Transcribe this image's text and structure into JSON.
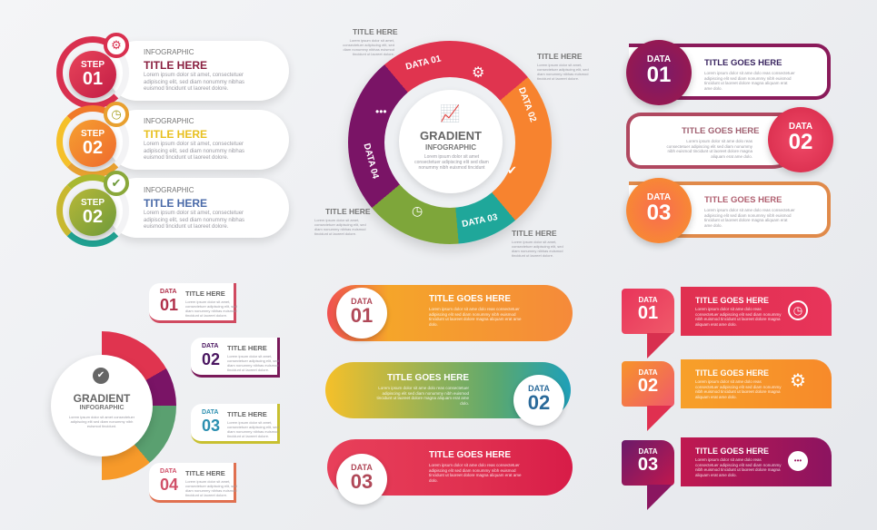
{
  "lorem_short": "Lorem ipsum dolor sit amet, consectetuer adipiscing elit, sed diam nonummy nibhas euismod tincidunt ut laoreet dolore.",
  "lorem_long": "Lorem ipsum dolor sit ame dolo reas consectetuer adipiscing elit sed diam nonummy nibh euismod tincidunt ut laoreet dolore magna aliquam erat ame dolo.",
  "steps": {
    "items": [
      {
        "kicker": "INFOGRAPHIC",
        "title": "TITLE HERE",
        "step": "STEP",
        "num": "01",
        "icon": "gear-icon",
        "color": "#d9304f"
      },
      {
        "kicker": "INFOGRAPHIC",
        "title": "TITLE HERE",
        "step": "STEP",
        "num": "02",
        "icon": "clock-icon",
        "color": "#f07a2a"
      },
      {
        "kicker": "INFOGRAPHIC",
        "title": "TITLE HERE",
        "step": "STEP",
        "num": "02",
        "icon": "lightbulb-check-icon",
        "color": "#8aa83a"
      }
    ]
  },
  "cycle": {
    "title": "GRADIENT",
    "subtitle": "INFOGRAPHIC",
    "body": "Lorem ipsum dolor sit amet consectetuer adipiscing elit sed diam nonummy nibh euismod tincidunt",
    "segments": [
      {
        "label": "DATA 01",
        "color": "#e0344f",
        "icon": "gear-icon"
      },
      {
        "label": "DATA 02",
        "color": "#f7832f",
        "icon": "lightbulb-check-icon"
      },
      {
        "label": "DATA 03",
        "color": "#1fa79a",
        "icon": "clock-icon"
      },
      {
        "label": "DATA 04",
        "color": "#7a1466",
        "icon": "chat-icon"
      }
    ],
    "callouts": [
      "TITLE HERE",
      "TITLE HERE",
      "TITLE HERE",
      "TITLE HERE"
    ]
  },
  "badges": {
    "items": [
      {
        "data": "DATA",
        "num": "01",
        "title": "TITLE GOES HERE",
        "color": "#7a1466"
      },
      {
        "data": "DATA",
        "num": "02",
        "title": "TITLE GOES HERE",
        "color": "#e03551"
      },
      {
        "data": "DATA",
        "num": "03",
        "title": "TITLE GOES HERE",
        "color": "#f7832f"
      }
    ]
  },
  "branch": {
    "title": "GRADIENT",
    "subtitle": "INFOGRAPHIC",
    "body": "Lorem ipsum dolor sit amet consectetuer adipiscing elit sed diam nonummy nibh euismod tincidunt.",
    "items": [
      {
        "data": "DATA",
        "num": "01",
        "title": "TITLE HERE",
        "color": "#c7324e"
      },
      {
        "data": "DATA",
        "num": "02",
        "title": "TITLE HERE",
        "color": "#5a1660"
      },
      {
        "data": "DATA",
        "num": "03",
        "title": "TITLE HERE",
        "color": "#2b8fb0"
      },
      {
        "data": "DATA",
        "num": "04",
        "title": "TITLE HERE",
        "color": "#e0506a"
      }
    ]
  },
  "ribbons": {
    "items": [
      {
        "data": "DATA",
        "num": "01",
        "title": "TITLE GOES HERE",
        "color": "#f79a2a"
      },
      {
        "data": "DATA",
        "num": "02",
        "title": "TITLE GOES HERE",
        "color": "#1fa0b0"
      },
      {
        "data": "DATA",
        "num": "03",
        "title": "TITLE GOES HERE",
        "color": "#e0304f"
      }
    ]
  },
  "tags": {
    "items": [
      {
        "data": "DATA",
        "num": "01",
        "title": "TITLE GOES HERE",
        "icon": "clock-icon",
        "color": "#e0345a"
      },
      {
        "data": "DATA",
        "num": "02",
        "title": "TITLE GOES HERE",
        "icon": "gear-icon",
        "color": "#f7922a"
      },
      {
        "data": "DATA",
        "num": "03",
        "title": "TITLE GOES HERE",
        "icon": "chat-icon",
        "color": "#9c1660"
      }
    ]
  }
}
